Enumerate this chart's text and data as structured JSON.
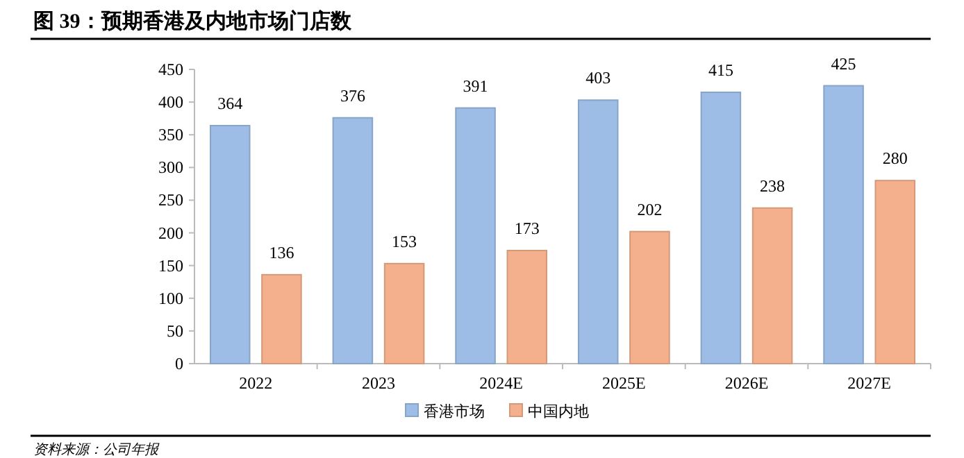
{
  "chart_data": {
    "type": "bar",
    "title": "图 39：预期香港及内地市场门店数",
    "categories": [
      "2022",
      "2023",
      "2024E",
      "2025E",
      "2026E",
      "2027E"
    ],
    "series": [
      {
        "name": "香港市场",
        "color": "#9dbde6",
        "values": [
          364,
          376,
          391,
          403,
          415,
          425
        ]
      },
      {
        "name": "中国内地",
        "color": "#f4b08c",
        "values": [
          136,
          153,
          173,
          202,
          238,
          280
        ]
      }
    ],
    "ylim": [
      0,
      450
    ],
    "yticks": [
      0,
      50,
      100,
      150,
      200,
      250,
      300,
      350,
      400,
      450
    ],
    "data_labels": true,
    "grid": false,
    "legend": "bottom",
    "annotations": [
      "资料来源：公司年报"
    ]
  }
}
